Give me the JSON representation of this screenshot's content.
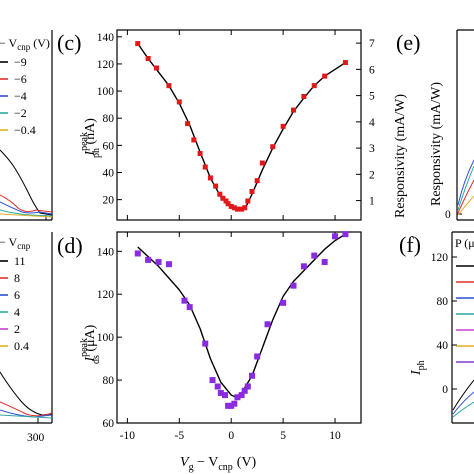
{
  "panels": {
    "c_label": "(c)",
    "d_label": "(d)",
    "e_label": "(e)",
    "f_label": "(f)"
  },
  "left_a": {
    "legend_title": "− V",
    "legend_title_sub": "cnp",
    "legend_title_unit": " (V)",
    "entries": [
      {
        "label": "−9",
        "color": "#000000"
      },
      {
        "label": "−6",
        "color": "#e0302a"
      },
      {
        "label": "−4",
        "color": "#2c4fd8"
      },
      {
        "label": "−2",
        "color": "#2ca9a0"
      },
      {
        "label": "−0.4",
        "color": "#e0b020"
      }
    ]
  },
  "left_b": {
    "legend_title": "− V",
    "legend_title_sub": "cnp",
    "entries": [
      {
        "label": "11",
        "color": "#000000"
      },
      {
        "label": "8",
        "color": "#e0302a"
      },
      {
        "label": "6",
        "color": "#2c4fd8"
      },
      {
        "label": "4",
        "color": "#2ca9a0"
      },
      {
        "label": "2",
        "color": "#c83fd0"
      },
      {
        "label": "0.4",
        "color": "#e0b020"
      }
    ],
    "x_tick": "300"
  },
  "right_e": {
    "ylabel": "Responsivity (mA/W)",
    "tick0": "0"
  },
  "right_f": {
    "legend_title": "P (μ",
    "ylabel_main": "I",
    "ylabel_sub": "ph",
    "ticks": [
      "120",
      "80",
      "40",
      "0"
    ],
    "colors": [
      "#000000",
      "#e0302a",
      "#2c4fd8",
      "#2ca9a0",
      "#c83fd0",
      "#e0b020",
      "#7a3fd0"
    ]
  },
  "chart_data": [
    {
      "type": "scatter",
      "panel": "c",
      "xlim": [
        -11,
        12.5
      ],
      "ylim": [
        5,
        145
      ],
      "ylabel_main": "I",
      "ylabel_sup": "peak",
      "ylabel_sub": "ph",
      "ylabel_unit": " (nA)",
      "y2label": "Responsivity (mA/W)",
      "y2lim": [
        0.26,
        7.5
      ],
      "yticks": [
        20,
        40,
        60,
        80,
        100,
        120,
        140
      ],
      "y2ticks": [
        1,
        2,
        3,
        4,
        5,
        6,
        7
      ],
      "marker_color": "#e01818",
      "points": [
        [
          -9,
          135
        ],
        [
          -8,
          124
        ],
        [
          -7.2,
          117
        ],
        [
          -6,
          104
        ],
        [
          -5,
          92
        ],
        [
          -4.2,
          76
        ],
        [
          -3.6,
          64
        ],
        [
          -3,
          54
        ],
        [
          -2.5,
          44
        ],
        [
          -2,
          36
        ],
        [
          -1.5,
          30
        ],
        [
          -1.1,
          24
        ],
        [
          -0.8,
          21
        ],
        [
          -0.5,
          19
        ],
        [
          -0.3,
          17
        ],
        [
          0,
          15
        ],
        [
          0.3,
          14
        ],
        [
          0.6,
          13
        ],
        [
          1,
          13
        ],
        [
          1.3,
          14
        ],
        [
          1.6,
          19
        ],
        [
          2,
          26
        ],
        [
          2.5,
          34
        ],
        [
          3,
          47
        ],
        [
          4,
          59
        ],
        [
          5,
          74
        ],
        [
          6,
          86
        ],
        [
          7,
          96
        ],
        [
          8,
          104
        ],
        [
          9,
          111
        ],
        [
          11,
          121
        ]
      ],
      "fit": [
        [
          -9,
          135
        ],
        [
          -8,
          124
        ],
        [
          -7,
          114
        ],
        [
          -6,
          104
        ],
        [
          -5,
          91
        ],
        [
          -4,
          75
        ],
        [
          -3,
          55
        ],
        [
          -2,
          36
        ],
        [
          -1,
          22
        ],
        [
          0,
          15
        ],
        [
          0.5,
          13
        ],
        [
          1,
          13
        ],
        [
          1.5,
          16
        ],
        [
          2,
          24
        ],
        [
          3,
          42
        ],
        [
          4,
          58
        ],
        [
          5,
          72
        ],
        [
          6,
          85
        ],
        [
          7,
          95
        ],
        [
          8,
          104
        ],
        [
          9,
          111
        ],
        [
          10,
          116
        ],
        [
          11,
          121
        ]
      ]
    },
    {
      "type": "scatter",
      "panel": "d",
      "xlim": [
        -11,
        12.5
      ],
      "ylim": [
        60,
        149
      ],
      "xlabel_parts": [
        "V",
        "g",
        " − V",
        "cnp",
        "(V)"
      ],
      "xticks": [
        -10,
        -5,
        0,
        5,
        10
      ],
      "ylabel_main": "I",
      "ylabel_sup": "peak",
      "ylabel_sub": "ds",
      "ylabel_unit": " (μA)",
      "yticks": [
        60,
        80,
        100,
        120,
        140
      ],
      "marker_color": "#8a2be2",
      "points": [
        [
          -9,
          139
        ],
        [
          -8,
          136
        ],
        [
          -7,
          135
        ],
        [
          -6,
          134
        ],
        [
          -4.5,
          117
        ],
        [
          -4,
          114
        ],
        [
          -2.5,
          97
        ],
        [
          -1.8,
          80
        ],
        [
          -1.3,
          77
        ],
        [
          -1,
          74
        ],
        [
          -0.6,
          73
        ],
        [
          -0.3,
          68
        ],
        [
          0,
          68
        ],
        [
          0.3,
          69
        ],
        [
          0.6,
          72
        ],
        [
          1,
          73
        ],
        [
          1.3,
          75
        ],
        [
          1.6,
          77
        ],
        [
          2,
          82
        ],
        [
          2.5,
          91
        ],
        [
          3.5,
          106
        ],
        [
          5,
          116
        ],
        [
          6,
          124
        ],
        [
          7,
          133
        ],
        [
          8,
          138
        ],
        [
          9,
          135
        ],
        [
          10,
          147
        ],
        [
          11,
          148
        ]
      ],
      "fit": [
        [
          -9,
          142
        ],
        [
          -7,
          133
        ],
        [
          -5,
          122
        ],
        [
          -4,
          115
        ],
        [
          -3,
          104
        ],
        [
          -2,
          90
        ],
        [
          -1,
          79
        ],
        [
          0,
          73
        ],
        [
          0.5,
          72
        ],
        [
          1,
          74
        ],
        [
          2,
          82
        ],
        [
          3,
          95
        ],
        [
          4,
          108
        ],
        [
          5,
          119
        ],
        [
          6,
          126
        ],
        [
          7,
          131
        ],
        [
          8,
          136
        ],
        [
          9,
          141
        ],
        [
          10,
          145
        ],
        [
          11,
          148
        ]
      ]
    }
  ]
}
